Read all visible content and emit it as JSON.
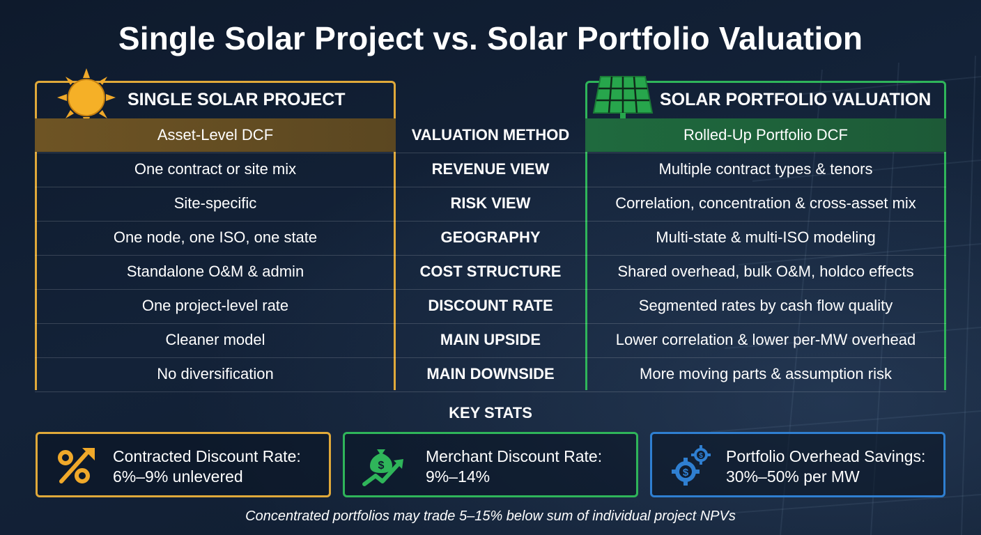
{
  "title": "Single Solar Project vs. Solar Portfolio Valuation",
  "left_header": "SINGLE SOLAR PROJECT",
  "right_header": "SOLAR PORTFOLIO VALUATION",
  "rows": [
    {
      "left": "Asset-Level DCF",
      "label": "VALUATION METHOD",
      "right": "Rolled-Up Portfolio DCF"
    },
    {
      "left": "One contract or site mix",
      "label": "REVENUE VIEW",
      "right": "Multiple contract types & tenors"
    },
    {
      "left": "Site-specific",
      "label": "RISK VIEW",
      "right": "Correlation, concentration & cross-asset mix"
    },
    {
      "left": "One node, one ISO, one state",
      "label": "GEOGRAPHY",
      "right": "Multi-state & multi-ISO modeling"
    },
    {
      "left": "Standalone O&M & admin",
      "label": "COST STRUCTURE",
      "right": "Shared overhead, bulk O&M, holdco effects"
    },
    {
      "left": "One project-level rate",
      "label": "DISCOUNT RATE",
      "right": "Segmented rates by cash flow quality"
    },
    {
      "left": "Cleaner model",
      "label": "MAIN UPSIDE",
      "right": "Lower correlation & lower per-MW overhead"
    },
    {
      "left": "No diversification",
      "label": "MAIN DOWNSIDE",
      "right": "More moving parts & assumption risk"
    }
  ],
  "key_stats_title": "KEY STATS",
  "stats": [
    {
      "line1": "Contracted Discount Rate:",
      "line2": "6%–9% unlevered",
      "icon": "percent-up-arrow-icon"
    },
    {
      "line1": "Merchant Discount Rate:",
      "line2": "9%–14%",
      "icon": "money-bag-trend-icon"
    },
    {
      "line1": "Portfolio Overhead Savings:",
      "line2": "30%–50% per MW",
      "icon": "dollar-gears-icon"
    }
  ],
  "footnote": "Concentrated portfolios may trade 5–15% below sum of individual project NPVs",
  "colors": {
    "gold": "#e0a93a",
    "green": "#2fb55a",
    "blue": "#2f7fd1"
  }
}
